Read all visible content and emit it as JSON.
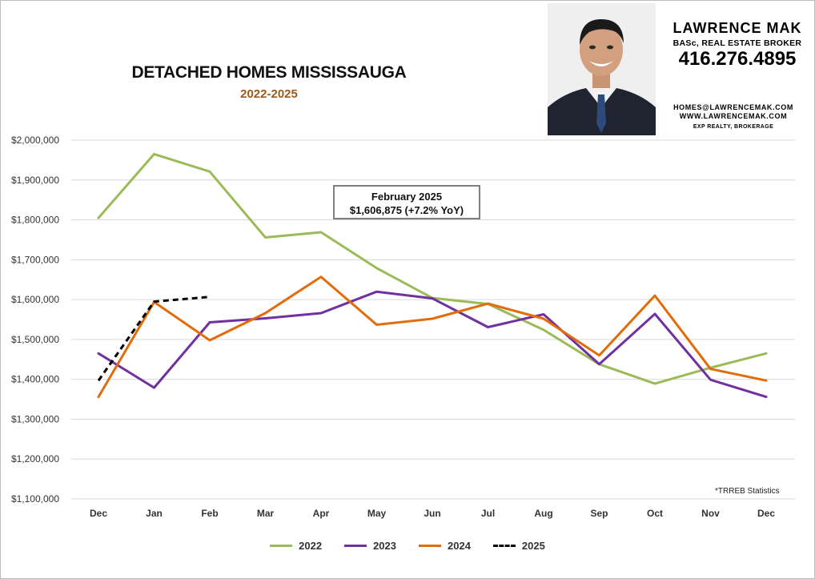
{
  "title": "DETACHED HOMES MISSISSAUGA",
  "subtitle": "2022-2025",
  "annotation": {
    "line1": "February 2025",
    "line2": "$1,606,875 (+7.2% YoY)"
  },
  "broker": {
    "name": "LAWRENCE MAK",
    "credentials": "BASc, REAL ESTATE BROKER",
    "phone": "416.276.4895",
    "email": "HOMES@LAWRENCEMAK.COM",
    "website": "WWW.LAWRENCEMAK.COM",
    "brokerage": "EXP REALTY, BROKERAGE"
  },
  "source_note": "*TRREB Statistics",
  "colors": {
    "s2022": "#9bbb59",
    "s2023": "#7030a0",
    "s2024": "#e36c0a",
    "s2025": "#000000",
    "grid": "#d9d9d9"
  },
  "chart_data": {
    "type": "line",
    "categories": [
      "Dec",
      "Jan",
      "Feb",
      "Mar",
      "Apr",
      "May",
      "Jun",
      "Jul",
      "Aug",
      "Sep",
      "Oct",
      "Nov",
      "Dec"
    ],
    "ylim": [
      1100000,
      2000000
    ],
    "yticks": [
      1100000,
      1200000,
      1300000,
      1400000,
      1500000,
      1600000,
      1700000,
      1800000,
      1900000,
      2000000
    ],
    "ytick_labels": [
      "$1,100,000",
      "$1,200,000",
      "$1,300,000",
      "$1,400,000",
      "$1,500,000",
      "$1,600,000",
      "$1,700,000",
      "$1,800,000",
      "$1,900,000",
      "$2,000,000"
    ],
    "grid": true,
    "legend_position": "bottom",
    "series": [
      {
        "name": "2022",
        "color": "#9bbb59",
        "dash": false,
        "values": [
          1805000,
          1965000,
          1921000,
          1756000,
          1769000,
          1679000,
          1604000,
          1589000,
          1524000,
          1438000,
          1389000,
          1429000,
          1465000
        ]
      },
      {
        "name": "2023",
        "color": "#7030a0",
        "dash": false,
        "values": [
          1465000,
          1379000,
          1543000,
          1553000,
          1566000,
          1620000,
          1603000,
          1531000,
          1563000,
          1438000,
          1564000,
          1399000,
          1356000
        ]
      },
      {
        "name": "2024",
        "color": "#e36c0a",
        "dash": false,
        "values": [
          1356000,
          1594000,
          1498000,
          1566000,
          1657000,
          1537000,
          1552000,
          1590000,
          1552000,
          1460000,
          1610000,
          1426000,
          1397000
        ]
      },
      {
        "name": "2025",
        "color": "#000000",
        "dash": true,
        "values": [
          1397000,
          1595000,
          1606875,
          null,
          null,
          null,
          null,
          null,
          null,
          null,
          null,
          null,
          null
        ]
      }
    ]
  }
}
